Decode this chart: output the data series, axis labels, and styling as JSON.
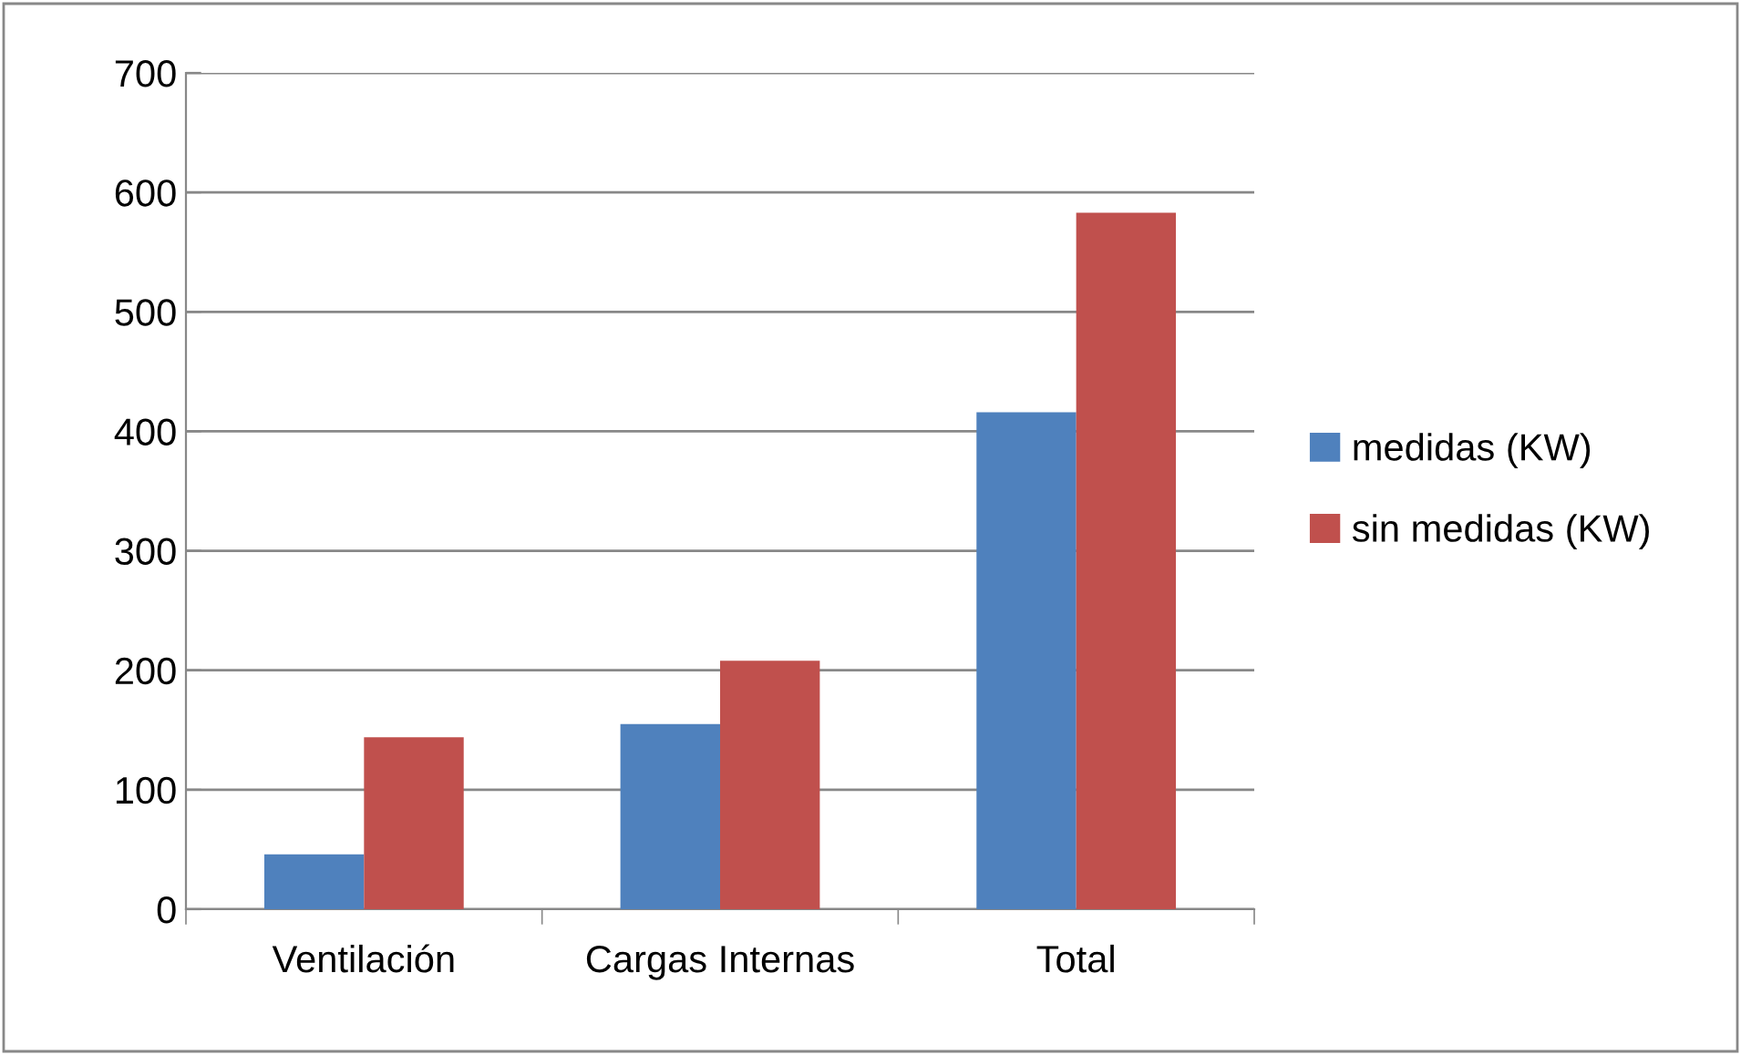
{
  "chart_data": {
    "type": "bar",
    "categories": [
      "Ventilación",
      "Cargas Internas",
      "Total"
    ],
    "series": [
      {
        "name": "medidas (KW)",
        "color": "#4f81bd",
        "values": [
          46,
          155,
          416
        ]
      },
      {
        "name": "sin medidas (KW)",
        "color": "#c0504d",
        "values": [
          144,
          208,
          583
        ]
      }
    ],
    "ylim": [
      0,
      700
    ],
    "yticks": [
      0,
      100,
      200,
      300,
      400,
      500,
      600,
      700
    ],
    "grid": "y",
    "legend": "right"
  }
}
